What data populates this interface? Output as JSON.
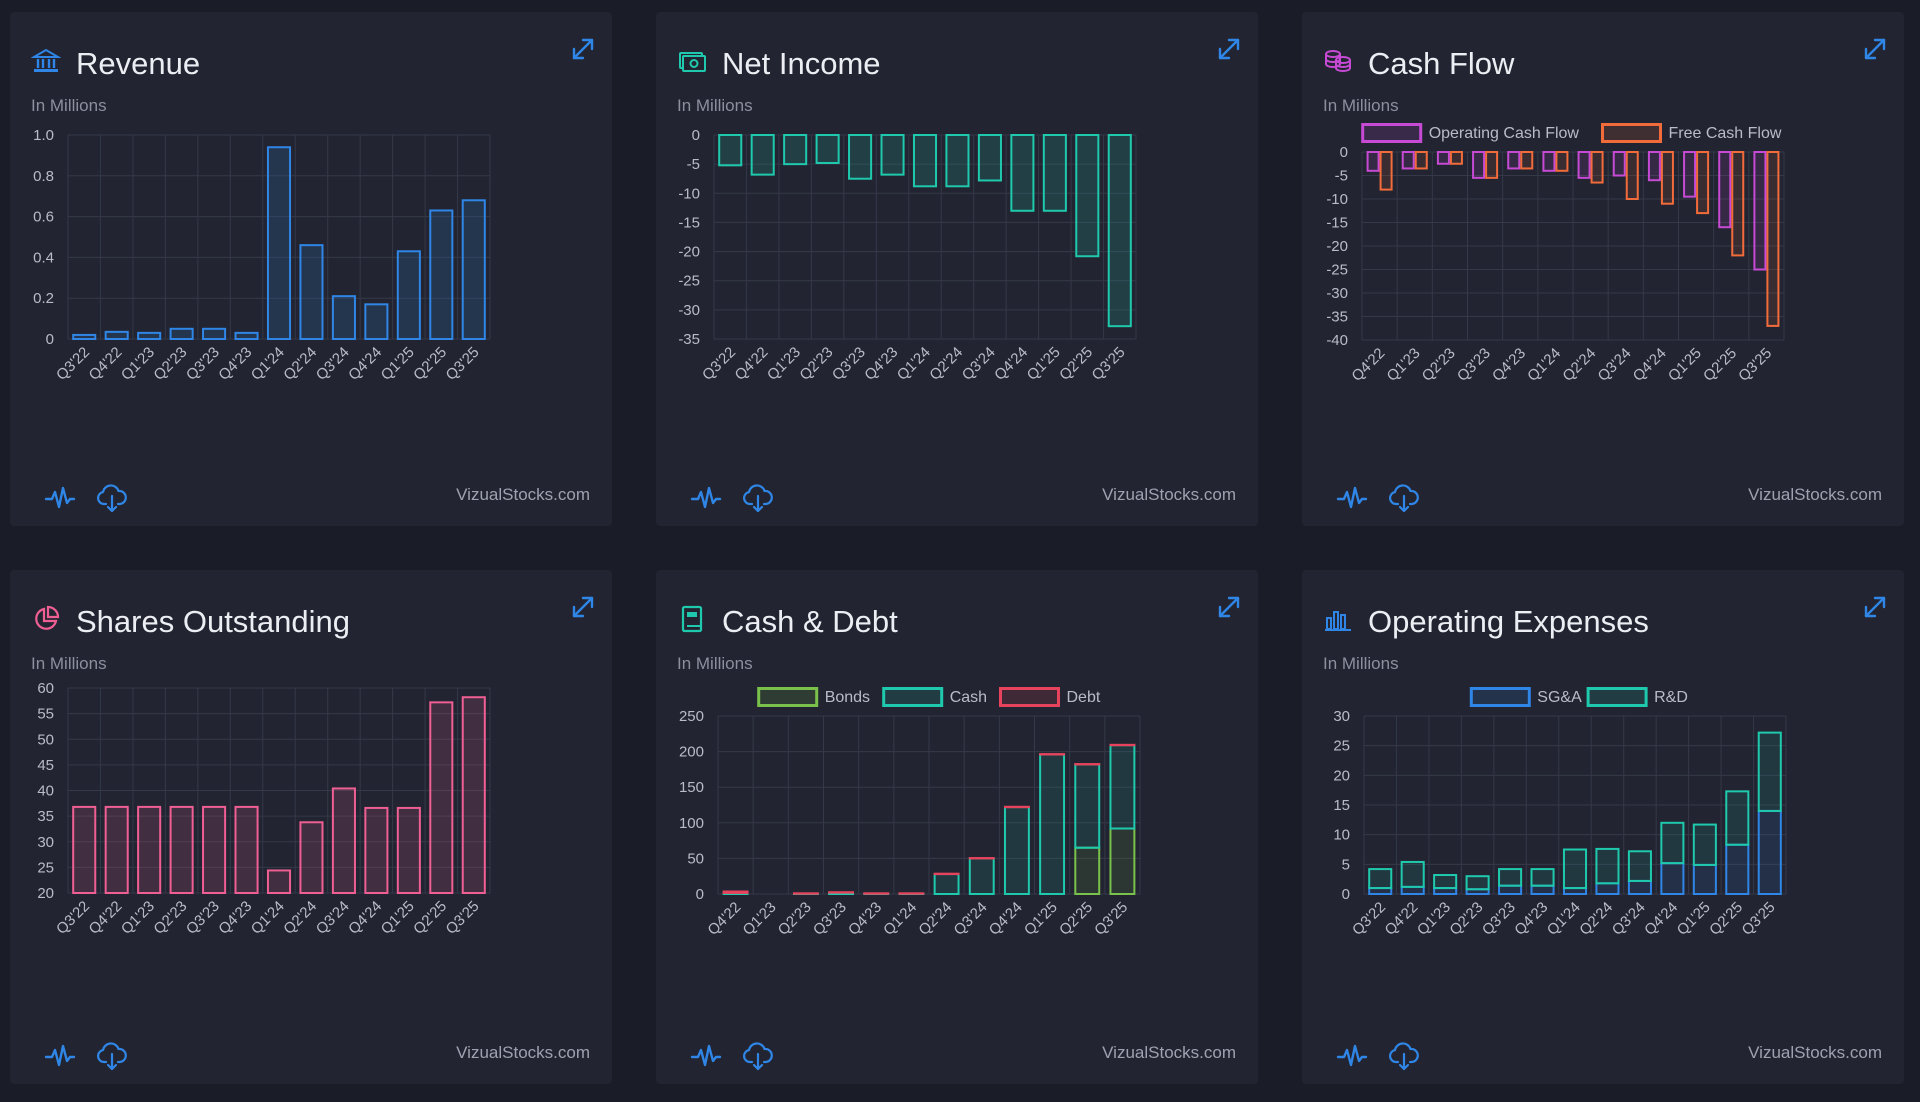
{
  "brand": "VizualStocks.com",
  "subtitle": "In Millions",
  "colors": {
    "blue": "#2f86e6",
    "teal": "#1fc9ad",
    "pink": "#ef5f94",
    "magenta": "#c74ad5",
    "orange": "#f26b3a",
    "green": "#79c14a",
    "red": "#e8435c",
    "grid": "#343848",
    "tick": "#b9bcc8"
  },
  "cards": [
    {
      "id": "revenue",
      "title": "Revenue",
      "icon": "bank-icon",
      "chart_data": {
        "type": "bar",
        "categories": [
          "Q3'22",
          "Q4'22",
          "Q1'23",
          "Q2'23",
          "Q3'23",
          "Q4'23",
          "Q1'24",
          "Q2'24",
          "Q3'24",
          "Q4'24",
          "Q1'25",
          "Q2'25",
          "Q3'25"
        ],
        "series": [
          {
            "values": [
              0.02,
              0.035,
              0.03,
              0.05,
              0.05,
              0.03,
              0.94,
              0.46,
              0.21,
              0.17,
              0.43,
              0.63,
              0.68
            ],
            "color": "#2f86e6"
          }
        ],
        "ylim": [
          0,
          1.0
        ],
        "yticks": [
          0,
          0.2,
          0.4,
          0.6,
          0.8,
          1.0
        ],
        "ytick_labels": [
          "0",
          "0.2",
          "0.4",
          "0.6",
          "0.8",
          "1.0"
        ],
        "grid": true
      }
    },
    {
      "id": "net-income",
      "title": "Net Income",
      "icon": "money-icon",
      "chart_data": {
        "type": "bar",
        "categories": [
          "Q3'22",
          "Q4'22",
          "Q1'23",
          "Q2'23",
          "Q3'23",
          "Q4'23",
          "Q1'24",
          "Q2'24",
          "Q3'24",
          "Q4'24",
          "Q1'25",
          "Q2'25",
          "Q3'25"
        ],
        "series": [
          {
            "values": [
              -5.2,
              -6.8,
              -5,
              -4.8,
              -7.5,
              -6.8,
              -8.8,
              -8.8,
              -7.8,
              -13,
              -13,
              -20.8,
              -32.8
            ],
            "color": "#1fc9ad"
          }
        ],
        "ylim": [
          -35,
          0
        ],
        "yticks": [
          0,
          -5,
          -10,
          -15,
          -20,
          -25,
          -30,
          -35
        ],
        "ytick_labels": [
          "0",
          "-5",
          "-10",
          "-15",
          "-20",
          "-25",
          "-30",
          "-35"
        ],
        "grid": true
      }
    },
    {
      "id": "cash-flow",
      "title": "Cash Flow",
      "icon": "coins-icon",
      "chart_data": {
        "type": "bar",
        "categories": [
          "Q4'22",
          "Q1'23",
          "Q2'23",
          "Q3'23",
          "Q4'23",
          "Q1'24",
          "Q2'24",
          "Q3'24",
          "Q4'24",
          "Q1'25",
          "Q2'25",
          "Q3'25"
        ],
        "series": [
          {
            "name": "Operating Cash Flow",
            "values": [
              -4,
              -3.5,
              -2.5,
              -5.5,
              -3.5,
              -4,
              -5.5,
              -5,
              -6,
              -9.5,
              -16,
              -25
            ],
            "color": "#c74ad5"
          },
          {
            "name": "Free Cash Flow",
            "values": [
              -8,
              -3.5,
              -2.5,
              -5.5,
              -3.5,
              -4,
              -6.5,
              -10,
              -11,
              -13,
              -22,
              -37
            ],
            "color": "#f26b3a"
          }
        ],
        "ylim": [
          -40,
          0
        ],
        "yticks": [
          0,
          -5,
          -10,
          -15,
          -20,
          -25,
          -30,
          -35,
          -40
        ],
        "ytick_labels": [
          "0",
          "-5",
          "-10",
          "-15",
          "-20",
          "-25",
          "-30",
          "-35",
          "-40"
        ],
        "legend": "top",
        "grid": true
      }
    },
    {
      "id": "shares-outstanding",
      "title": "Shares Outstanding",
      "icon": "pie-chart-icon",
      "chart_data": {
        "type": "bar",
        "categories": [
          "Q3'22",
          "Q4'22",
          "Q1'23",
          "Q2'23",
          "Q3'23",
          "Q4'23",
          "Q1'24",
          "Q2'24",
          "Q3'24",
          "Q4'24",
          "Q1'25",
          "Q2'25",
          "Q3'25"
        ],
        "series": [
          {
            "values": [
              36.8,
              36.8,
              36.8,
              36.8,
              36.8,
              36.8,
              24.4,
              33.8,
              40.4,
              36.6,
              36.6,
              57.2,
              58.2
            ],
            "color": "#ef5f94"
          }
        ],
        "ylim": [
          20,
          60
        ],
        "yticks": [
          20,
          25,
          30,
          35,
          40,
          45,
          50,
          55,
          60
        ],
        "ytick_labels": [
          "20",
          "25",
          "30",
          "35",
          "40",
          "45",
          "50",
          "55",
          "60"
        ],
        "grid": true
      }
    },
    {
      "id": "cash-debt",
      "title": "Cash & Debt",
      "icon": "ledger-icon",
      "chart_data": {
        "type": "bar",
        "stacked": true,
        "categories": [
          "Q4'22",
          "Q1'23",
          "Q2'23",
          "Q3'23",
          "Q4'23",
          "Q1'24",
          "Q2'24",
          "Q3'24",
          "Q4'24",
          "Q1'25",
          "Q2'25",
          "Q3'25"
        ],
        "series": [
          {
            "name": "Bonds",
            "values": [
              0,
              0,
              0,
              0,
              0,
              0,
              0,
              0,
              0,
              0,
              65,
              92
            ],
            "color": "#79c14a"
          },
          {
            "name": "Cash",
            "values": [
              1.5,
              0,
              0.5,
              2,
              0.5,
              0.5,
              28,
              50,
              122,
              196,
              117,
              117
            ],
            "color": "#1fc9ad"
          },
          {
            "name": "Debt",
            "values": [
              2,
              0,
              0.5,
              0.5,
              0.5,
              0.5,
              0.5,
              0.5,
              0.5,
              0.5,
              0.5,
              0.5
            ],
            "color": "#e8435c"
          }
        ],
        "ylim": [
          0,
          250
        ],
        "yticks": [
          0,
          50,
          100,
          150,
          200,
          250
        ],
        "ytick_labels": [
          "0",
          "50",
          "100",
          "150",
          "200",
          "250"
        ],
        "legend": "top",
        "grid": true
      }
    },
    {
      "id": "operating-expenses",
      "title": "Operating Expenses",
      "icon": "bar-chart-icon",
      "chart_data": {
        "type": "bar",
        "stacked": true,
        "categories": [
          "Q3'22",
          "Q4'22",
          "Q1'23",
          "Q2'23",
          "Q3'23",
          "Q4'23",
          "Q1'24",
          "Q2'24",
          "Q3'24",
          "Q4'24",
          "Q1'25",
          "Q2'25",
          "Q3'25"
        ],
        "series": [
          {
            "name": "SG&A",
            "values": [
              1,
              1.2,
              1,
              0.8,
              1.4,
              1.4,
              1,
              1.8,
              2.2,
              5.2,
              4.9,
              8.3,
              14
            ],
            "color": "#2f86e6"
          },
          {
            "name": "R&D",
            "values": [
              3.2,
              4.2,
              2.2,
              2.2,
              2.8,
              2.8,
              6.5,
              5.8,
              5,
              6.8,
              6.8,
              9,
              13.2
            ],
            "color": "#1fc9ad"
          }
        ],
        "ylim": [
          0,
          30
        ],
        "yticks": [
          0,
          5,
          10,
          15,
          20,
          25,
          30
        ],
        "ytick_labels": [
          "0",
          "5",
          "10",
          "15",
          "20",
          "25",
          "30"
        ],
        "legend": "top",
        "grid": true
      }
    }
  ]
}
